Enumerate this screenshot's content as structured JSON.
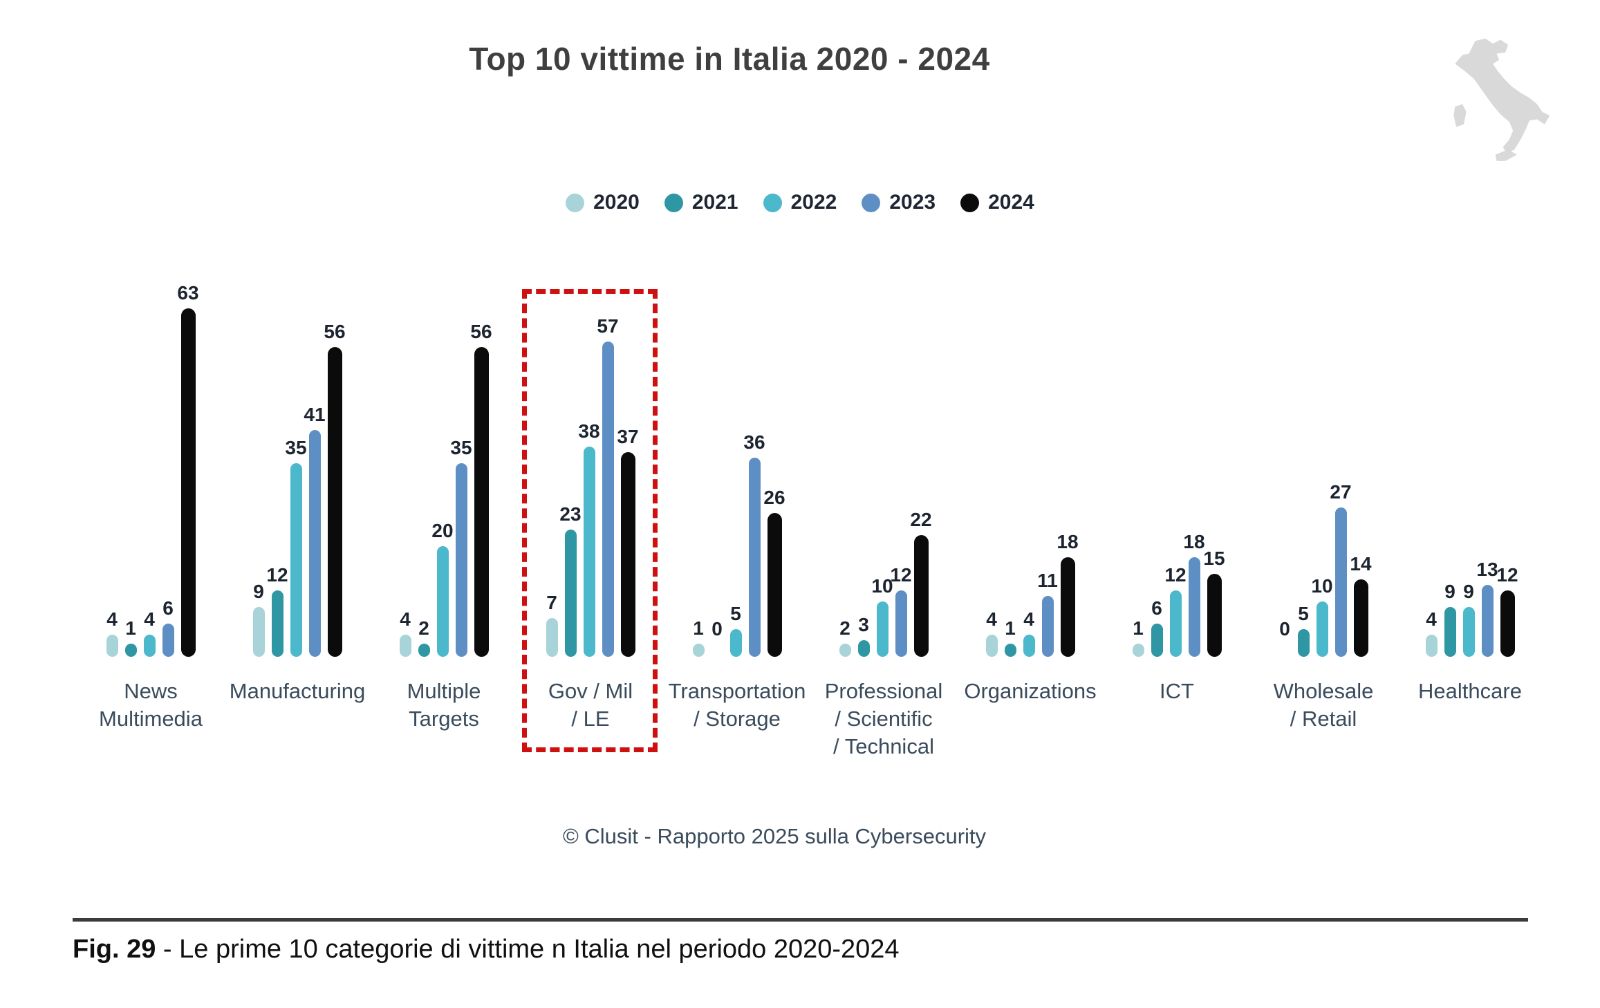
{
  "page": {
    "title": "Top 10 vittime in Italia 2020 - 2024",
    "footer": "© Clusit - Rapporto 2025 sulla Cybersecurity",
    "caption_bold": "Fig. 29",
    "caption_rest": " - Le prime 10 categorie di vittime n Italia nel periodo 2020-2024"
  },
  "icons": {
    "italy_map": "italy-map-silhouette",
    "italy_color": "#d9d9d9"
  },
  "highlight": {
    "category": "Gov / Mil / LE",
    "color": "#cf1010",
    "style": "red-dashed-rectangle"
  },
  "chart_data": {
    "type": "bar",
    "title": "Top 10 vittime in Italia 2020 - 2024",
    "xlabel": "",
    "ylabel": "",
    "ylim": [
      0,
      63
    ],
    "grid": false,
    "legend_position": "top",
    "value_labels": true,
    "categories": [
      "News Multimedia",
      "Manufacturing",
      "Multiple Targets",
      "Gov / Mil / LE",
      "Transportation / Storage",
      "Professional / Scientific / Technical",
      "Organizations",
      "ICT",
      "Wholesale / Retail",
      "Healthcare"
    ],
    "category_lines": [
      [
        "News",
        "Multimedia"
      ],
      [
        "Manufacturing"
      ],
      [
        "Multiple",
        "Targets"
      ],
      [
        "Gov / Mil",
        "/ LE"
      ],
      [
        "Transportation",
        "/ Storage"
      ],
      [
        "Professional",
        "/ Scientific",
        "/ Technical"
      ],
      [
        "Organizations"
      ],
      [
        "ICT"
      ],
      [
        "Wholesale",
        "/ Retail"
      ],
      [
        "Healthcare"
      ]
    ],
    "series": [
      {
        "name": "2020",
        "color": "#a8d3d8",
        "values": [
          4,
          9,
          4,
          7,
          1,
          2,
          4,
          1,
          0,
          4
        ]
      },
      {
        "name": "2021",
        "color": "#2f96a3",
        "values": [
          1,
          12,
          2,
          23,
          0,
          3,
          1,
          6,
          5,
          9
        ]
      },
      {
        "name": "2022",
        "color": "#4cb8cb",
        "values": [
          4,
          35,
          20,
          38,
          5,
          10,
          4,
          12,
          10,
          9
        ]
      },
      {
        "name": "2023",
        "color": "#5e8fc4",
        "values": [
          6,
          41,
          35,
          57,
          36,
          12,
          11,
          18,
          27,
          13
        ]
      },
      {
        "name": "2024",
        "color": "#0b0b0b",
        "values": [
          63,
          56,
          56,
          37,
          26,
          22,
          18,
          15,
          14,
          12
        ]
      }
    ]
  }
}
